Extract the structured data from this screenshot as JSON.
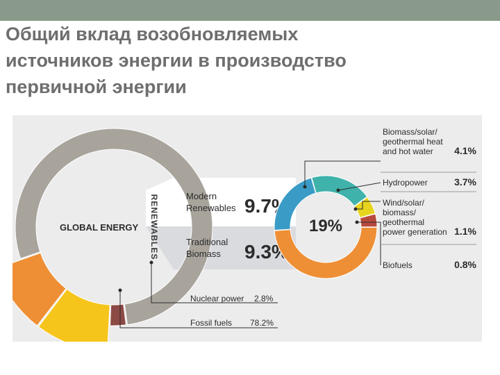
{
  "title_lines": [
    "Общий вклад возобновляемых",
    "источников энергии в производство",
    "первичной энергии"
  ],
  "colors": {
    "top_bar": "#8a9a8a",
    "title": "#6e6e6e",
    "panel": "#ececec",
    "fossil": "#a8a49c",
    "nuclear": "#8c4a45",
    "modern": "#f6c51c",
    "traditional": "#ee8f35",
    "biomass_heat": "#3a9bc6",
    "hydropower": "#3fb2ab",
    "wind_solar": "#e7d41f",
    "biofuels": "#b84a3d"
  },
  "chart_data": [
    {
      "type": "pie",
      "title": "GLOBAL ENERGY",
      "slices": [
        {
          "label": "Fossil fuels",
          "value": 78.2,
          "display": "78.2%",
          "color": "#a8a49c"
        },
        {
          "label": "Nuclear power",
          "value": 2.8,
          "display": "2.8%",
          "color": "#8c4a45"
        },
        {
          "label": "Modern Renewables",
          "value": 9.7,
          "display": "9.7%",
          "color": "#f6c51c"
        },
        {
          "label": "Traditional Biomass",
          "value": 9.3,
          "display": "9.3%",
          "color": "#ee8f35"
        }
      ],
      "group_label": "RENEWABLES"
    },
    {
      "type": "pie",
      "title": "19%",
      "slices": [
        {
          "label": "Traditional Biomass",
          "value": 9.3,
          "color": "#ee8f35"
        },
        {
          "label": "Biomass/solar/ geothermal heat and hot water",
          "value": 4.1,
          "display": "4.1%",
          "color": "#3a9bc6"
        },
        {
          "label": "Hydropower",
          "value": 3.7,
          "display": "3.7%",
          "color": "#3fb2ab"
        },
        {
          "label": "Wind/solar/ biomass/ geothermal power generation",
          "value": 1.1,
          "display": "1.1%",
          "color": "#e7d41f"
        },
        {
          "label": "Biofuels",
          "value": 0.8,
          "display": "0.8%",
          "color": "#b84a3d"
        }
      ]
    }
  ],
  "labels": {
    "global_energy": "GLOBAL ENERGY",
    "renewables": "RENEWABLES",
    "modern_line1": "Modern",
    "modern_line2": "Renewables",
    "modern_value": "9.7%",
    "traditional_line1": "Traditional",
    "traditional_line2": "Biomass",
    "traditional_value": "9.3%",
    "center_value": "19%",
    "nuclear_label": "Nuclear power",
    "nuclear_value": "2.8%",
    "fossil_label": "Fossil fuels",
    "fossil_value": "78.2%",
    "biomass_heat_line1": "Biomass/solar/",
    "biomass_heat_line2": "geothermal heat",
    "biomass_heat_line3": "and hot water",
    "biomass_heat_value": "4.1%",
    "hydro_label": "Hydropower",
    "hydro_value": "3.7%",
    "wind_line1": "Wind/solar/",
    "wind_line2": "biomass/",
    "wind_line3": "geothermal",
    "wind_line4": "power generation",
    "wind_value": "1.1%",
    "biofuels_label": "Biofuels",
    "biofuels_value": "0.8%"
  }
}
